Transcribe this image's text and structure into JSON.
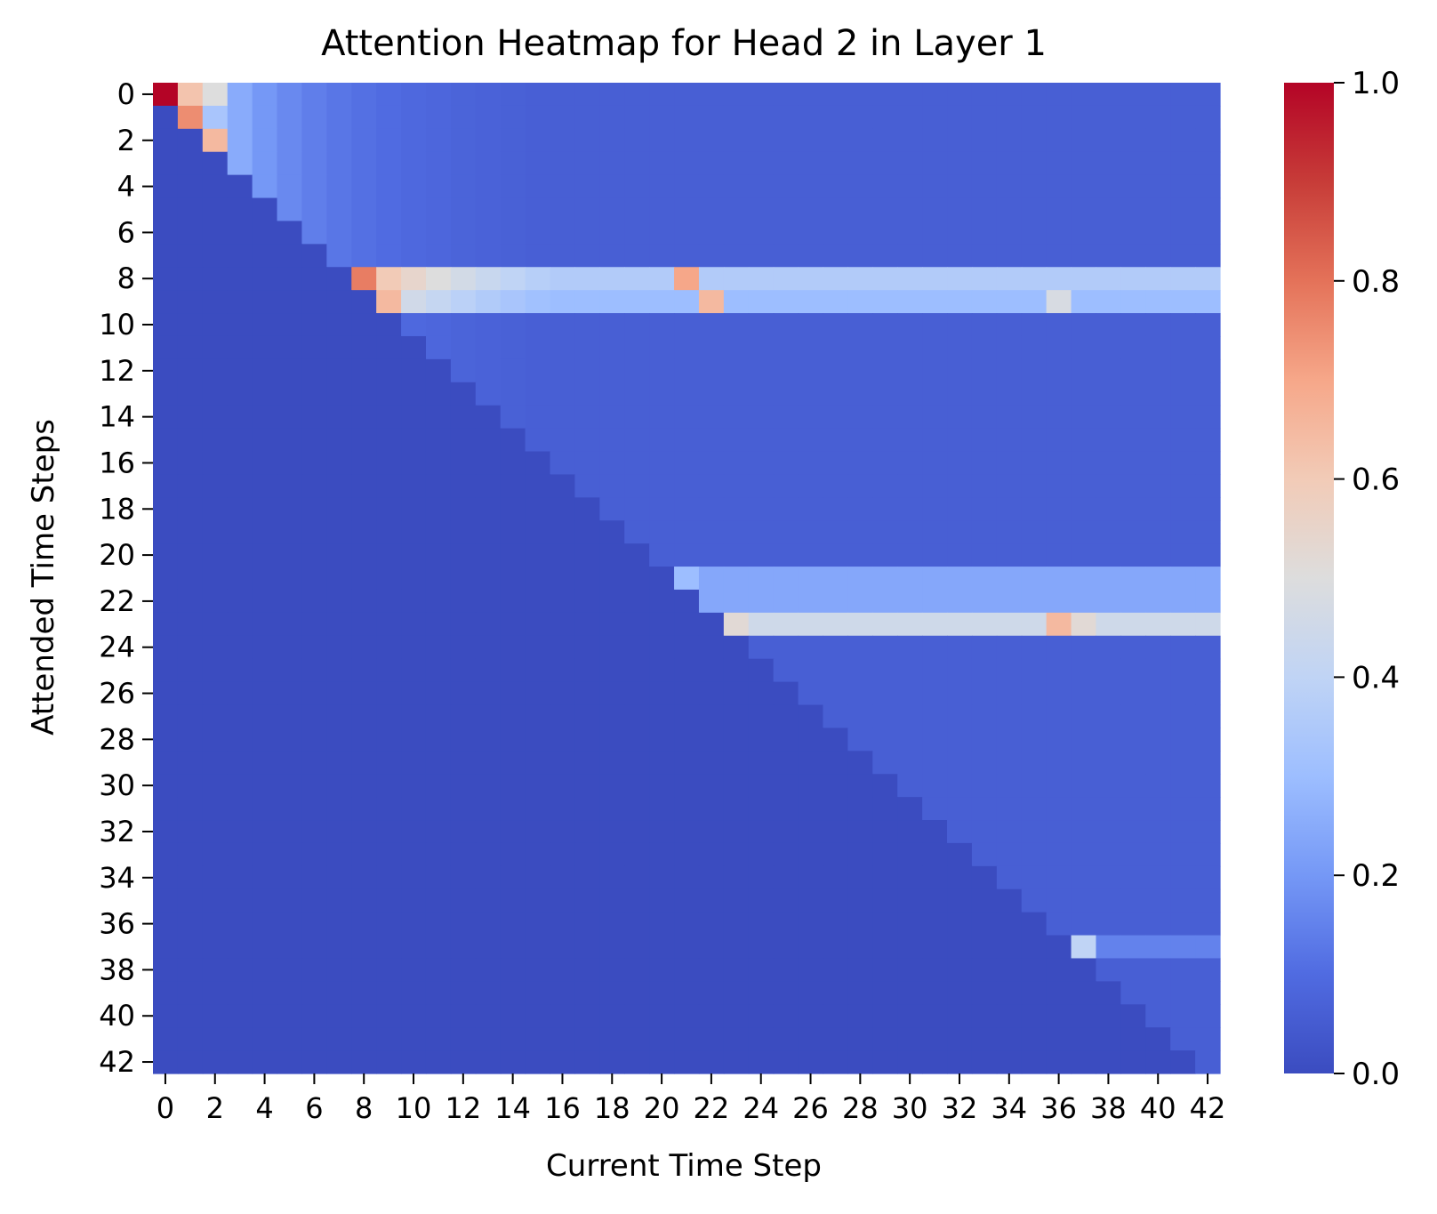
{
  "chart_data": {
    "type": "heatmap",
    "title": "Attention Heatmap for Head 2 in Layer 1",
    "xlabel": "Current Time Step",
    "ylabel": "Attended Time Steps",
    "n": 43,
    "mask": "upper-triangular: cell (attended row r, current column c) holds a value only where c >= r; all cells with c < r are masked and shown at 0.0",
    "x_ticks": [
      "0",
      "2",
      "4",
      "6",
      "8",
      "10",
      "12",
      "14",
      "16",
      "18",
      "20",
      "22",
      "24",
      "26",
      "28",
      "30",
      "32",
      "34",
      "36",
      "38",
      "40",
      "42"
    ],
    "y_ticks": [
      "0",
      "2",
      "4",
      "6",
      "8",
      "10",
      "12",
      "14",
      "16",
      "18",
      "20",
      "22",
      "24",
      "26",
      "28",
      "30",
      "32",
      "34",
      "36",
      "38",
      "40",
      "42"
    ],
    "colorbar": {
      "colormap": "coolwarm",
      "range": [
        0.0,
        1.0
      ],
      "ticks": [
        "0.0",
        "0.2",
        "0.4",
        "0.6",
        "0.8",
        "1.0"
      ],
      "tick_values": [
        0.0,
        0.2,
        0.4,
        0.6,
        0.8,
        1.0
      ]
    },
    "model": "approximate; value at (r, c) = max(0.06, 1/(c+1)) x row_weight[r], where c >= r; rows 8, 9, 21, 23 carry stronger attention",
    "row_weights": [
      1.0,
      1.0,
      1.0,
      1.0,
      1.0,
      1.0,
      1.0,
      1.0,
      6.0,
      5.0,
      1.0,
      1.0,
      1.0,
      1.0,
      1.0,
      1.0,
      1.0,
      1.0,
      1.0,
      1.0,
      1.0,
      4.0,
      4.0,
      7.5,
      1.0,
      1.0,
      1.0,
      1.0,
      1.0,
      1.0,
      1.0,
      1.0,
      1.0,
      1.0,
      1.0,
      1.0,
      1.0,
      2.5,
      1.0,
      1.0,
      1.0,
      1.0,
      1.0
    ],
    "diagonal_highlights": [
      {
        "row": 0,
        "col": 0,
        "value": 1.0
      },
      {
        "row": 1,
        "col": 1,
        "value": 0.75
      },
      {
        "row": 2,
        "col": 2,
        "value": 0.65
      },
      {
        "row": 8,
        "col": 8,
        "value": 0.78
      },
      {
        "row": 9,
        "col": 9,
        "value": 0.65
      },
      {
        "row": 21,
        "col": 21,
        "value": 0.3
      },
      {
        "row": 23,
        "col": 23,
        "value": 0.52
      },
      {
        "row": 37,
        "col": 37,
        "value": 0.4
      }
    ],
    "notable_values": [
      {
        "row": 8,
        "col": 21,
        "value": 0.7
      },
      {
        "row": 9,
        "col": 22,
        "value": 0.65
      },
      {
        "row": 23,
        "col": 36,
        "value": 0.65
      },
      {
        "row": 23,
        "col": 37,
        "value": 0.52
      },
      {
        "row": 9,
        "col": 36,
        "value": 0.48
      },
      {
        "row": 0,
        "col": 1,
        "value": 0.62
      },
      {
        "row": 0,
        "col": 2,
        "value": 0.5
      }
    ],
    "grid": false
  }
}
